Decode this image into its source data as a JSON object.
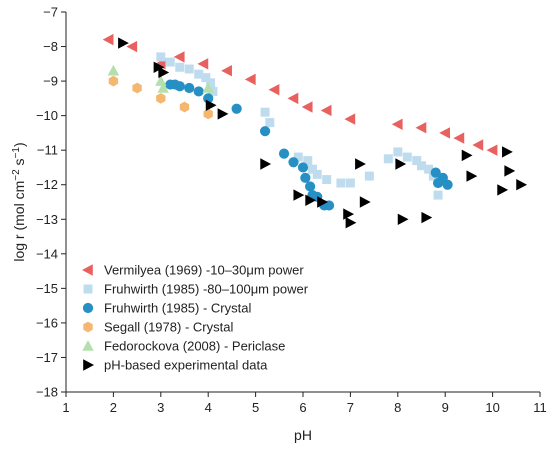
{
  "chart_data": {
    "type": "scatter",
    "xlabel": "pH",
    "ylabel_parts": [
      "log r (mol cm",
      "−2",
      " s",
      "−1",
      ")"
    ],
    "xlim": [
      1,
      11
    ],
    "ylim": [
      -18,
      -7
    ],
    "x_ticks": [
      "1",
      "2",
      "3",
      "4",
      "5",
      "6",
      "7",
      "8",
      "9",
      "10",
      "11"
    ],
    "y_ticks": [
      "−18",
      "−17",
      "−16",
      "−15",
      "−14",
      "−13",
      "−12",
      "−11",
      "−10",
      "−9",
      "−8",
      "−7"
    ],
    "legend_position": "bottom-left",
    "series": [
      {
        "name": "Vermilyea (1969) -10–30μm power",
        "marker": "triangle-left",
        "color": "#e8615f",
        "points": [
          [
            1.9,
            -7.8
          ],
          [
            2.4,
            -8.0
          ],
          [
            3.0,
            -8.5
          ],
          [
            3.4,
            -8.3
          ],
          [
            3.9,
            -8.5
          ],
          [
            4.4,
            -8.7
          ],
          [
            4.9,
            -8.95
          ],
          [
            5.4,
            -9.25
          ],
          [
            5.8,
            -9.5
          ],
          [
            6.1,
            -9.75
          ],
          [
            6.5,
            -9.85
          ],
          [
            7.0,
            -10.1
          ],
          [
            8.0,
            -10.25
          ],
          [
            8.5,
            -10.35
          ],
          [
            9.0,
            -10.5
          ],
          [
            9.3,
            -10.65
          ],
          [
            9.7,
            -10.85
          ],
          [
            10.0,
            -11.0
          ]
        ]
      },
      {
        "name": "Fruhwirth (1985) -80–100μm power",
        "marker": "square",
        "color": "#bfdcef",
        "points": [
          [
            3.0,
            -8.3
          ],
          [
            3.2,
            -8.45
          ],
          [
            3.4,
            -8.6
          ],
          [
            3.6,
            -8.65
          ],
          [
            3.8,
            -8.8
          ],
          [
            3.95,
            -8.9
          ],
          [
            4.05,
            -9.05
          ],
          [
            4.1,
            -9.3
          ],
          [
            5.2,
            -9.9
          ],
          [
            5.3,
            -10.2
          ],
          [
            5.9,
            -11.2
          ],
          [
            6.1,
            -11.3
          ],
          [
            6.2,
            -11.55
          ],
          [
            6.3,
            -11.7
          ],
          [
            6.5,
            -11.85
          ],
          [
            6.8,
            -11.95
          ],
          [
            7.0,
            -11.95
          ],
          [
            7.4,
            -11.75
          ],
          [
            7.8,
            -11.25
          ],
          [
            8.0,
            -11.05
          ],
          [
            8.2,
            -11.2
          ],
          [
            8.4,
            -11.3
          ],
          [
            8.5,
            -11.45
          ],
          [
            8.65,
            -11.55
          ],
          [
            8.75,
            -11.75
          ],
          [
            8.85,
            -12.3
          ]
        ]
      },
      {
        "name": "Fruhwirth (1985) - Crystal",
        "marker": "circle",
        "color": "#2690c5",
        "points": [
          [
            3.2,
            -9.1
          ],
          [
            3.3,
            -9.1
          ],
          [
            3.4,
            -9.15
          ],
          [
            3.6,
            -9.2
          ],
          [
            3.8,
            -9.3
          ],
          [
            4.0,
            -9.5
          ],
          [
            4.6,
            -9.8
          ],
          [
            5.2,
            -10.45
          ],
          [
            5.6,
            -11.1
          ],
          [
            5.8,
            -11.35
          ],
          [
            6.0,
            -11.5
          ],
          [
            6.05,
            -11.8
          ],
          [
            6.15,
            -12.05
          ],
          [
            6.2,
            -12.3
          ],
          [
            6.3,
            -12.35
          ],
          [
            6.45,
            -12.6
          ],
          [
            6.55,
            -12.6
          ],
          [
            8.8,
            -11.65
          ],
          [
            8.85,
            -11.95
          ],
          [
            8.95,
            -11.8
          ],
          [
            9.05,
            -12.0
          ]
        ]
      },
      {
        "name": "Segall (1978) - Crystal",
        "marker": "hexagon",
        "color": "#f5b76f",
        "points": [
          [
            2.0,
            -9.0
          ],
          [
            2.5,
            -9.2
          ],
          [
            3.0,
            -9.5
          ],
          [
            3.5,
            -9.75
          ],
          [
            4.0,
            -9.95
          ]
        ]
      },
      {
        "name": "Fedorockova (2008) - Periclase",
        "marker": "triangle-up",
        "color": "#b3e0ad",
        "points": [
          [
            2.0,
            -8.7
          ],
          [
            3.0,
            -9.0
          ],
          [
            3.05,
            -9.2
          ],
          [
            4.0,
            -9.2
          ]
        ]
      },
      {
        "name": "pH-based experimental data",
        "marker": "triangle-right",
        "color": "#000000",
        "points": [
          [
            2.2,
            -7.9
          ],
          [
            2.95,
            -8.6
          ],
          [
            3.05,
            -8.75
          ],
          [
            4.05,
            -9.7
          ],
          [
            4.3,
            -9.95
          ],
          [
            5.2,
            -11.4
          ],
          [
            5.9,
            -12.3
          ],
          [
            6.15,
            -12.45
          ],
          [
            6.4,
            -12.5
          ],
          [
            6.95,
            -12.85
          ],
          [
            7.0,
            -13.1
          ],
          [
            7.2,
            -11.4
          ],
          [
            7.3,
            -12.5
          ],
          [
            8.05,
            -11.4
          ],
          [
            8.1,
            -13.0
          ],
          [
            8.6,
            -12.95
          ],
          [
            9.45,
            -11.15
          ],
          [
            9.55,
            -11.75
          ],
          [
            10.2,
            -12.15
          ],
          [
            10.3,
            -11.05
          ],
          [
            10.35,
            -11.6
          ],
          [
            10.6,
            -12.0
          ]
        ]
      }
    ]
  }
}
